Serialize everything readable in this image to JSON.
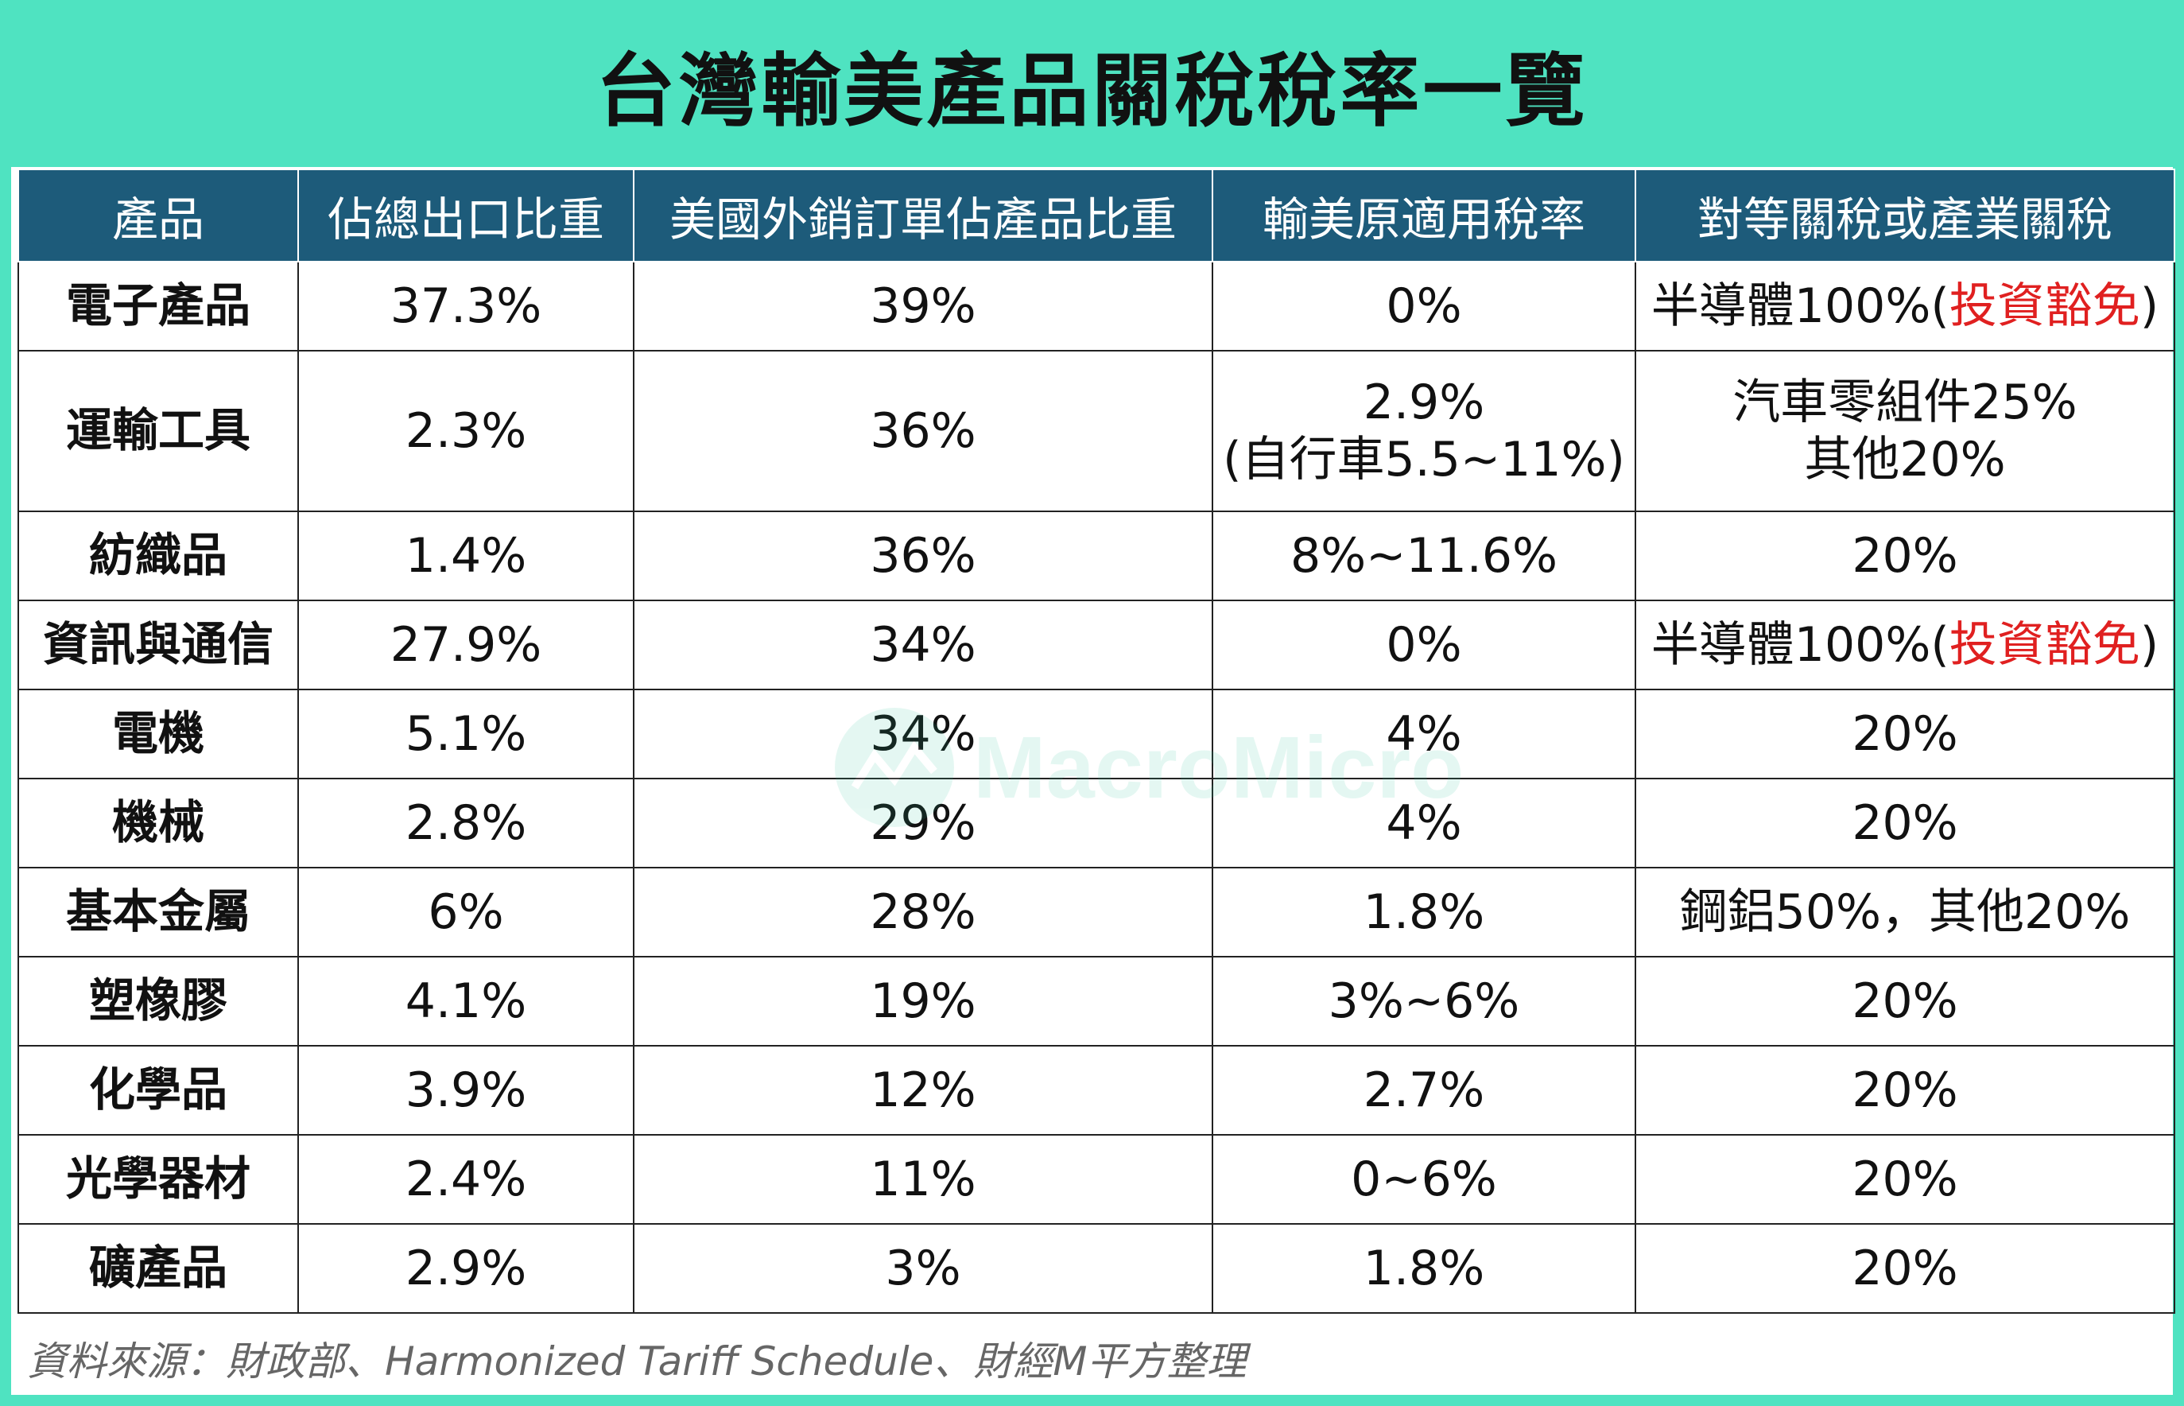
{
  "title": "台灣輸美產品關稅稅率一覽",
  "table": {
    "headers": [
      "產品",
      "佔總出口比重",
      "美國外銷訂單佔產品比重",
      "輸美原適用稅率",
      "對等關稅或產業關稅"
    ],
    "rows": [
      {
        "product": "電子產品",
        "export_share": "37.3%",
        "us_order_share": "39%",
        "original_rate": [
          "0%"
        ],
        "tariff": [
          {
            "text": "半導體100%(",
            "red": false
          },
          {
            "text": "投資豁免",
            "red": true
          },
          {
            "text": ")",
            "red": false
          }
        ]
      },
      {
        "product": "運輸工具",
        "export_share": "2.3%",
        "us_order_share": "36%",
        "original_rate": [
          "2.9%",
          "(自行車5.5~11%)"
        ],
        "tariff_lines": [
          "汽車零組件25%",
          "其他20%"
        ]
      },
      {
        "product": "紡織品",
        "export_share": "1.4%",
        "us_order_share": "36%",
        "original_rate": [
          "8%~11.6%"
        ],
        "tariff_lines": [
          "20%"
        ]
      },
      {
        "product": "資訊與通信",
        "export_share": "27.9%",
        "us_order_share": "34%",
        "original_rate": [
          "0%"
        ],
        "tariff": [
          {
            "text": "半導體100%(",
            "red": false
          },
          {
            "text": "投資豁免",
            "red": true
          },
          {
            "text": ")",
            "red": false
          }
        ]
      },
      {
        "product": "電機",
        "export_share": "5.1%",
        "us_order_share": "34%",
        "original_rate": [
          "4%"
        ],
        "tariff_lines": [
          "20%"
        ]
      },
      {
        "product": "機械",
        "export_share": "2.8%",
        "us_order_share": "29%",
        "original_rate": [
          "4%"
        ],
        "tariff_lines": [
          "20%"
        ]
      },
      {
        "product": "基本金屬",
        "export_share": "6%",
        "us_order_share": "28%",
        "original_rate": [
          "1.8%"
        ],
        "tariff_lines": [
          "鋼鋁50%，其他20%"
        ]
      },
      {
        "product": "塑橡膠",
        "export_share": "4.1%",
        "us_order_share": "19%",
        "original_rate": [
          "3%~6%"
        ],
        "tariff_lines": [
          "20%"
        ]
      },
      {
        "product": "化學品",
        "export_share": "3.9%",
        "us_order_share": "12%",
        "original_rate": [
          "2.7%"
        ],
        "tariff_lines": [
          "20%"
        ]
      },
      {
        "product": "光學器材",
        "export_share": "2.4%",
        "us_order_share": "11%",
        "original_rate": [
          "0~6%"
        ],
        "tariff_lines": [
          "20%"
        ]
      },
      {
        "product": "礦產品",
        "export_share": "2.9%",
        "us_order_share": "3%",
        "original_rate": [
          "1.8%"
        ],
        "tariff_lines": [
          "20%"
        ]
      }
    ]
  },
  "source": "資料來源：財政部、Harmonized Tariff Schedule、財經M平方整理",
  "watermark": "MacroMicro",
  "colors": {
    "accent": "#4fe3c1",
    "header_bg": "#1d5b7a",
    "highlight": "#e02020"
  }
}
